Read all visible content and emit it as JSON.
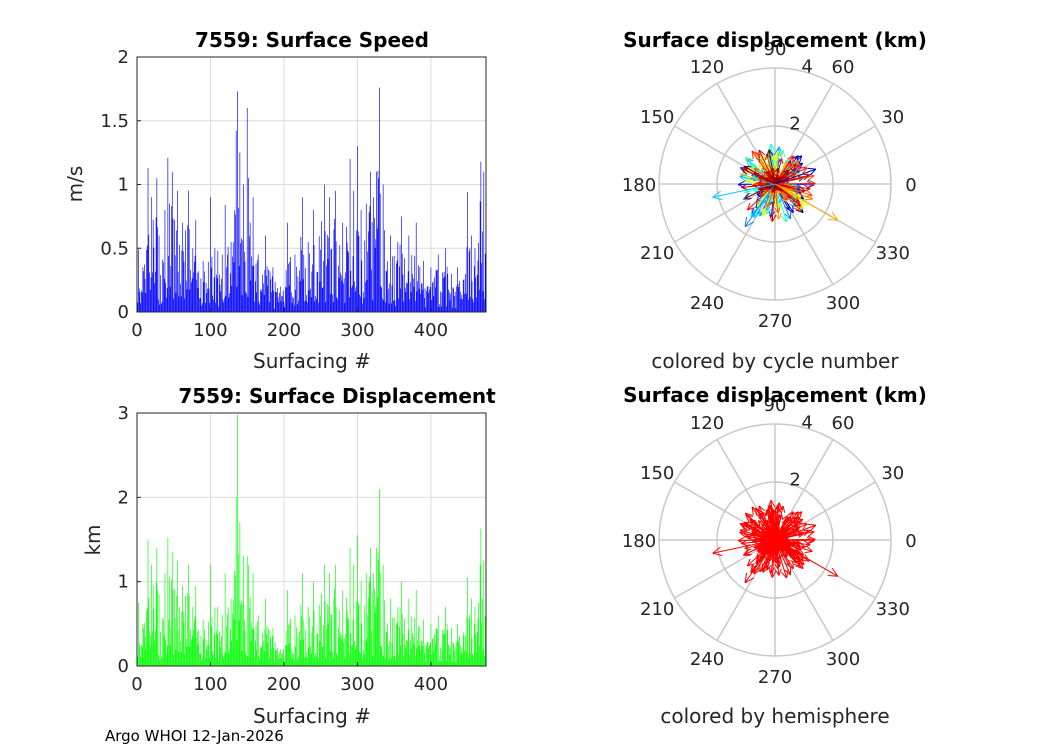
{
  "footer": "Argo WHOI 12-Jan-2026",
  "colors": {
    "speed_bar": "#0000ff",
    "displacement_bar": "#00ff00",
    "hemisphere_arrow": "#ff0000",
    "grid": "#dcdcdc",
    "polar_spoke": "#c8c8c8",
    "axis": "#262626"
  },
  "chart_data": [
    {
      "id": "speed",
      "type": "bar",
      "title": "7559: Surface Speed",
      "xlabel": "Surfacing #",
      "ylabel": "m/s",
      "xlim": [
        0,
        475
      ],
      "ylim": [
        0,
        2
      ],
      "xticks": [
        "0",
        "100",
        "200",
        "300",
        "400"
      ],
      "yticks": [
        "0",
        "0.5",
        "1",
        "1.5",
        "2"
      ],
      "n_bars": 475,
      "peaks": [
        {
          "x": 2,
          "y": 0.49
        },
        {
          "x": 8,
          "y": 0.35
        },
        {
          "x": 15,
          "y": 1.13
        },
        {
          "x": 20,
          "y": 0.9
        },
        {
          "x": 27,
          "y": 1.05
        },
        {
          "x": 30,
          "y": 0.6
        },
        {
          "x": 38,
          "y": 0.8
        },
        {
          "x": 42,
          "y": 1.21
        },
        {
          "x": 48,
          "y": 1.1
        },
        {
          "x": 55,
          "y": 0.95
        },
        {
          "x": 62,
          "y": 0.7
        },
        {
          "x": 70,
          "y": 0.95
        },
        {
          "x": 76,
          "y": 0.5
        },
        {
          "x": 80,
          "y": 0.72
        },
        {
          "x": 90,
          "y": 0.4
        },
        {
          "x": 100,
          "y": 0.9
        },
        {
          "x": 110,
          "y": 0.48
        },
        {
          "x": 120,
          "y": 0.84
        },
        {
          "x": 128,
          "y": 0.55
        },
        {
          "x": 135,
          "y": 1.42
        },
        {
          "x": 137,
          "y": 1.73
        },
        {
          "x": 140,
          "y": 1.25
        },
        {
          "x": 145,
          "y": 1.0
        },
        {
          "x": 150,
          "y": 1.6
        },
        {
          "x": 152,
          "y": 1.05
        },
        {
          "x": 158,
          "y": 0.9
        },
        {
          "x": 165,
          "y": 0.45
        },
        {
          "x": 175,
          "y": 0.6
        },
        {
          "x": 185,
          "y": 0.35
        },
        {
          "x": 195,
          "y": 0.2
        },
        {
          "x": 205,
          "y": 0.7
        },
        {
          "x": 215,
          "y": 0.45
        },
        {
          "x": 225,
          "y": 0.9
        },
        {
          "x": 233,
          "y": 0.55
        },
        {
          "x": 240,
          "y": 0.8
        },
        {
          "x": 255,
          "y": 1.0
        },
        {
          "x": 262,
          "y": 0.9
        },
        {
          "x": 270,
          "y": 0.95
        },
        {
          "x": 280,
          "y": 0.7
        },
        {
          "x": 290,
          "y": 1.2
        },
        {
          "x": 295,
          "y": 0.95
        },
        {
          "x": 300,
          "y": 1.3
        },
        {
          "x": 305,
          "y": 0.8
        },
        {
          "x": 312,
          "y": 0.85
        },
        {
          "x": 318,
          "y": 1.1
        },
        {
          "x": 322,
          "y": 0.9
        },
        {
          "x": 326,
          "y": 1.1
        },
        {
          "x": 330,
          "y": 1.76
        },
        {
          "x": 335,
          "y": 1.0
        },
        {
          "x": 345,
          "y": 0.6
        },
        {
          "x": 355,
          "y": 0.55
        },
        {
          "x": 360,
          "y": 0.75
        },
        {
          "x": 370,
          "y": 0.6
        },
        {
          "x": 380,
          "y": 0.7
        },
        {
          "x": 390,
          "y": 0.4
        },
        {
          "x": 400,
          "y": 0.35
        },
        {
          "x": 410,
          "y": 0.45
        },
        {
          "x": 420,
          "y": 0.5
        },
        {
          "x": 428,
          "y": 0.3
        },
        {
          "x": 436,
          "y": 0.35
        },
        {
          "x": 444,
          "y": 0.25
        },
        {
          "x": 450,
          "y": 0.94
        },
        {
          "x": 455,
          "y": 0.6
        },
        {
          "x": 460,
          "y": 0.5
        },
        {
          "x": 468,
          "y": 1.18
        },
        {
          "x": 472,
          "y": 1.1
        },
        {
          "x": 475,
          "y": 0.4
        }
      ]
    },
    {
      "id": "displacement",
      "type": "bar",
      "title": "7559: Surface Displacement",
      "xlabel": "Surfacing #",
      "ylabel": "km",
      "xlim": [
        0,
        475
      ],
      "ylim": [
        0,
        3
      ],
      "xticks": [
        "0",
        "100",
        "200",
        "300",
        "400"
      ],
      "yticks": [
        "0",
        "1",
        "2",
        "3"
      ],
      "n_bars": 475,
      "peaks": [
        {
          "x": 2,
          "y": 0.75
        },
        {
          "x": 8,
          "y": 0.5
        },
        {
          "x": 15,
          "y": 1.5
        },
        {
          "x": 20,
          "y": 1.2
        },
        {
          "x": 27,
          "y": 1.4
        },
        {
          "x": 30,
          "y": 0.85
        },
        {
          "x": 38,
          "y": 1.1
        },
        {
          "x": 42,
          "y": 1.52
        },
        {
          "x": 48,
          "y": 1.35
        },
        {
          "x": 55,
          "y": 1.25
        },
        {
          "x": 62,
          "y": 0.95
        },
        {
          "x": 70,
          "y": 1.2
        },
        {
          "x": 76,
          "y": 0.7
        },
        {
          "x": 80,
          "y": 0.95
        },
        {
          "x": 90,
          "y": 0.55
        },
        {
          "x": 100,
          "y": 1.2
        },
        {
          "x": 110,
          "y": 0.7
        },
        {
          "x": 120,
          "y": 1.1
        },
        {
          "x": 128,
          "y": 0.8
        },
        {
          "x": 135,
          "y": 2.0
        },
        {
          "x": 137,
          "y": 2.98
        },
        {
          "x": 140,
          "y": 1.7
        },
        {
          "x": 145,
          "y": 1.3
        },
        {
          "x": 150,
          "y": 1.3
        },
        {
          "x": 152,
          "y": 1.2
        },
        {
          "x": 158,
          "y": 1.1
        },
        {
          "x": 165,
          "y": 0.6
        },
        {
          "x": 175,
          "y": 0.8
        },
        {
          "x": 185,
          "y": 0.45
        },
        {
          "x": 195,
          "y": 0.2
        },
        {
          "x": 205,
          "y": 0.9
        },
        {
          "x": 215,
          "y": 0.6
        },
        {
          "x": 225,
          "y": 1.1
        },
        {
          "x": 233,
          "y": 0.7
        },
        {
          "x": 240,
          "y": 1.0
        },
        {
          "x": 255,
          "y": 1.2
        },
        {
          "x": 262,
          "y": 1.1
        },
        {
          "x": 270,
          "y": 1.2
        },
        {
          "x": 280,
          "y": 0.9
        },
        {
          "x": 290,
          "y": 1.4
        },
        {
          "x": 295,
          "y": 1.2
        },
        {
          "x": 300,
          "y": 1.55
        },
        {
          "x": 305,
          "y": 1.0
        },
        {
          "x": 312,
          "y": 1.1
        },
        {
          "x": 318,
          "y": 1.4
        },
        {
          "x": 322,
          "y": 1.1
        },
        {
          "x": 326,
          "y": 1.4
        },
        {
          "x": 330,
          "y": 2.1
        },
        {
          "x": 335,
          "y": 1.2
        },
        {
          "x": 345,
          "y": 0.8
        },
        {
          "x": 355,
          "y": 0.7
        },
        {
          "x": 360,
          "y": 1.0
        },
        {
          "x": 370,
          "y": 0.8
        },
        {
          "x": 380,
          "y": 0.9
        },
        {
          "x": 390,
          "y": 0.55
        },
        {
          "x": 400,
          "y": 0.5
        },
        {
          "x": 410,
          "y": 0.6
        },
        {
          "x": 420,
          "y": 0.7
        },
        {
          "x": 428,
          "y": 0.45
        },
        {
          "x": 436,
          "y": 0.5
        },
        {
          "x": 444,
          "y": 0.4
        },
        {
          "x": 450,
          "y": 1.05
        },
        {
          "x": 455,
          "y": 0.8
        },
        {
          "x": 460,
          "y": 0.7
        },
        {
          "x": 468,
          "y": 1.63
        },
        {
          "x": 472,
          "y": 1.25
        },
        {
          "x": 475,
          "y": 0.6
        }
      ]
    },
    {
      "id": "polar_cycle",
      "type": "polar",
      "title": "Surface displacement (km)",
      "caption": "colored by cycle number",
      "rlim": [
        0,
        4
      ],
      "rticks": [
        "2",
        "4"
      ],
      "theta_ticks": [
        "0",
        "30",
        "60",
        "90",
        "120",
        "150",
        "180",
        "210",
        "240",
        "270",
        "300",
        "330"
      ],
      "color_mode": "cycle",
      "long_arrows": [
        {
          "angle_deg": 20,
          "r_km": 1.5,
          "color": "#0000cc"
        },
        {
          "angle_deg": 168,
          "r_km": 1.25,
          "color": "#00c8ff"
        },
        {
          "angle_deg": 192,
          "r_km": 2.2,
          "color": "#00c8ff"
        },
        {
          "angle_deg": 235,
          "r_km": 1.8,
          "color": "#1a7cff"
        },
        {
          "angle_deg": 330,
          "r_km": 2.5,
          "color": "#ffa500"
        },
        {
          "angle_deg": 338,
          "r_km": 1.4,
          "color": "#ff7f00"
        },
        {
          "angle_deg": 100,
          "r_km": 1.2,
          "color": "#880000"
        },
        {
          "angle_deg": 160,
          "r_km": 0.6,
          "color": "#cc0000"
        }
      ]
    },
    {
      "id": "polar_hemisphere",
      "type": "polar",
      "title": "Surface displacement (km)",
      "caption": "colored by hemisphere",
      "rlim": [
        0,
        4
      ],
      "rticks": [
        "2",
        "4"
      ],
      "theta_ticks": [
        "0",
        "30",
        "60",
        "90",
        "120",
        "150",
        "180",
        "210",
        "240",
        "270",
        "300",
        "330"
      ],
      "color_mode": "hemisphere",
      "long_arrows": [
        {
          "angle_deg": 20,
          "r_km": 1.5,
          "color": "#ff0000"
        },
        {
          "angle_deg": 192,
          "r_km": 2.2,
          "color": "#ff0000"
        },
        {
          "angle_deg": 330,
          "r_km": 2.5,
          "color": "#ff0000"
        },
        {
          "angle_deg": 168,
          "r_km": 1.25,
          "color": "#ff0000"
        },
        {
          "angle_deg": 235,
          "r_km": 1.8,
          "color": "#ff0000"
        }
      ]
    }
  ]
}
